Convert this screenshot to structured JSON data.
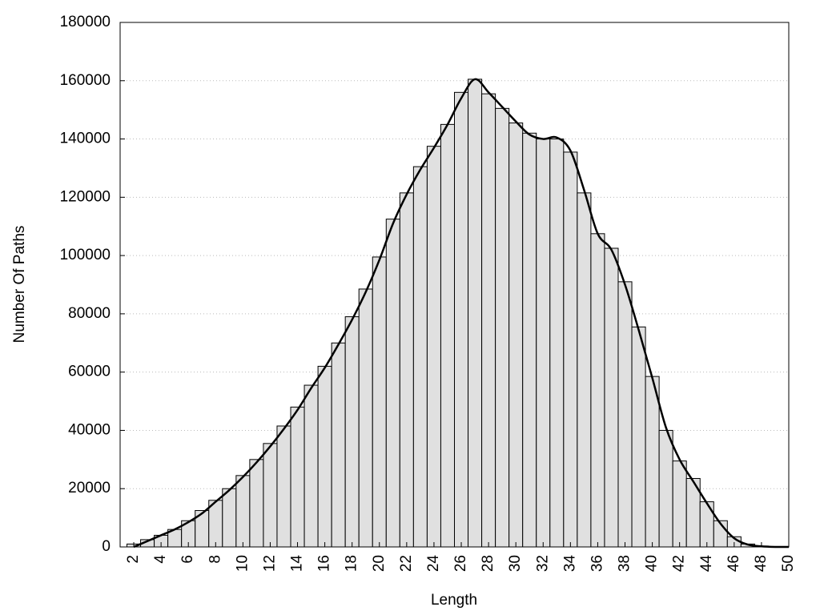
{
  "chart_data": {
    "type": "bar",
    "x_label": "Length",
    "y_label": "Number Of Paths",
    "x": [
      2,
      3,
      4,
      5,
      6,
      7,
      8,
      9,
      10,
      11,
      12,
      13,
      14,
      15,
      16,
      17,
      18,
      19,
      20,
      21,
      22,
      23,
      24,
      25,
      26,
      27,
      28,
      29,
      30,
      31,
      32,
      33,
      34,
      35,
      36,
      37,
      38,
      39,
      40,
      41,
      42,
      43,
      44,
      45,
      46,
      47,
      48,
      49,
      50
    ],
    "series": [
      {
        "type": "bar",
        "color": "#e0e0e0",
        "values": [
          1000,
          2500,
          4000,
          6000,
          9000,
          12500,
          16000,
          20000,
          24500,
          30000,
          35500,
          41500,
          48000,
          55500,
          62000,
          70000,
          79000,
          88500,
          99500,
          112500,
          121500,
          130500,
          137500,
          145000,
          156000,
          160500,
          155500,
          150500,
          145500,
          142000,
          140000,
          140000,
          135500,
          121500,
          107500,
          102500,
          91000,
          75500,
          58500,
          40000,
          29500,
          23500,
          15500,
          9000,
          3500,
          1000,
          300,
          100,
          0
        ]
      },
      {
        "type": "line",
        "color": "#000000",
        "values": [
          0,
          2000,
          4000,
          6000,
          8500,
          11500,
          15500,
          19500,
          24000,
          29000,
          34500,
          40500,
          47000,
          54500,
          61500,
          69500,
          78000,
          87500,
          98500,
          111000,
          121000,
          129500,
          137000,
          145000,
          154000,
          160500,
          156000,
          151000,
          146000,
          141500,
          140000,
          140500,
          136000,
          122500,
          107500,
          102000,
          90000,
          74500,
          58000,
          41000,
          30000,
          22500,
          15000,
          8000,
          3000,
          800,
          200,
          0,
          0
        ]
      }
    ],
    "xlim": [
      1,
      50
    ],
    "ylim": [
      0,
      180000
    ],
    "xticks": [
      2,
      4,
      6,
      8,
      10,
      12,
      14,
      16,
      18,
      20,
      22,
      24,
      26,
      28,
      30,
      32,
      34,
      36,
      38,
      40,
      42,
      44,
      46,
      48,
      50
    ],
    "yticks": [
      0,
      20000,
      40000,
      60000,
      80000,
      100000,
      120000,
      140000,
      160000,
      180000
    ],
    "grid": true
  }
}
